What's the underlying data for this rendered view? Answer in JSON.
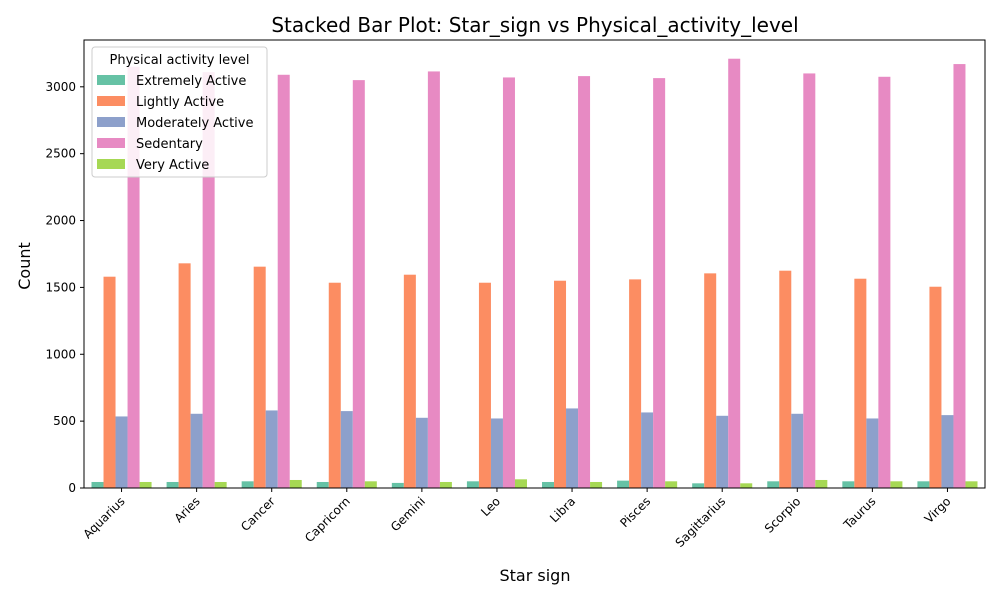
{
  "chart_data": {
    "type": "bar",
    "title": "Stacked Bar Plot: Star_sign vs Physical_activity_level",
    "xlabel": "Star sign",
    "ylabel": "Count",
    "ylim": [
      0,
      3350
    ],
    "yticks": [
      0,
      500,
      1000,
      1500,
      2000,
      2500,
      3000
    ],
    "categories": [
      "Aquarius",
      "Aries",
      "Cancer",
      "Capricorn",
      "Gemini",
      "Leo",
      "Libra",
      "Pisces",
      "Sagittarius",
      "Scorpio",
      "Taurus",
      "Virgo"
    ],
    "legend": {
      "title": "Physical activity level",
      "placement": "top-left"
    },
    "series": [
      {
        "name": "Extremely Active",
        "color": "#66c2a5",
        "values": [
          45,
          45,
          50,
          45,
          38,
          50,
          45,
          55,
          35,
          50,
          50,
          50
        ]
      },
      {
        "name": "Lightly Active",
        "color": "#fc8d62",
        "values": [
          1580,
          1680,
          1655,
          1535,
          1595,
          1535,
          1550,
          1560,
          1605,
          1625,
          1565,
          1505
        ]
      },
      {
        "name": "Moderately Active",
        "color": "#8da0cb",
        "values": [
          535,
          555,
          580,
          575,
          525,
          520,
          595,
          565,
          540,
          555,
          520,
          545
        ]
      },
      {
        "name": "Sedentary",
        "color": "#e78ac3",
        "values": [
          3150,
          3110,
          3090,
          3050,
          3115,
          3070,
          3080,
          3065,
          3210,
          3100,
          3075,
          3170
        ]
      },
      {
        "name": "Very Active",
        "color": "#a6d854",
        "values": [
          45,
          45,
          60,
          50,
          45,
          65,
          45,
          50,
          35,
          60,
          50,
          50
        ]
      }
    ]
  }
}
